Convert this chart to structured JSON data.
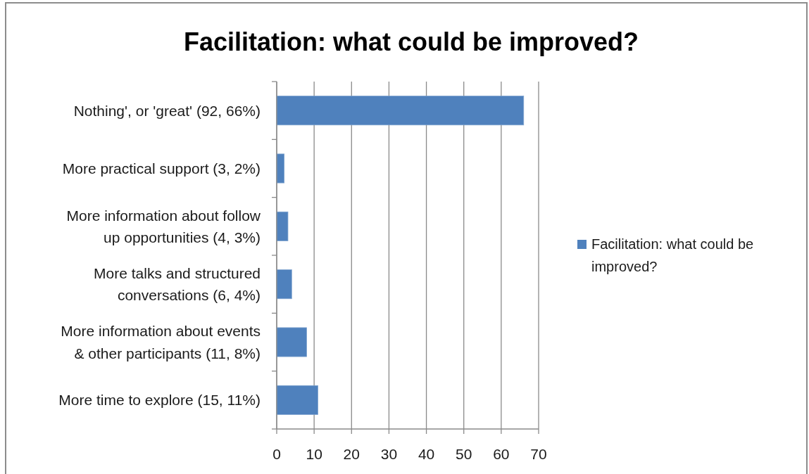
{
  "chart_data": {
    "type": "bar",
    "orientation": "horizontal",
    "title": "Facilitation: what could be improved?",
    "categories": [
      "Nothing', or 'great' (92, 66%)",
      "More practical support (3, 2%)",
      "More information about follow up opportunities (4, 3%)",
      "More talks and structured conversations (6, 4%)",
      "More information about events & other participants (11, 8%)",
      "More time to explore (15, 11%)"
    ],
    "series": [
      {
        "name": "Facilitation: what could be improved?",
        "color": "#4f81bd",
        "values": [
          66,
          2,
          3,
          4,
          8,
          11
        ]
      }
    ],
    "xlim": [
      0,
      70
    ],
    "xticks": [
      0,
      10,
      20,
      30,
      40,
      50,
      60,
      70
    ],
    "grid": "x",
    "legend": "right"
  }
}
